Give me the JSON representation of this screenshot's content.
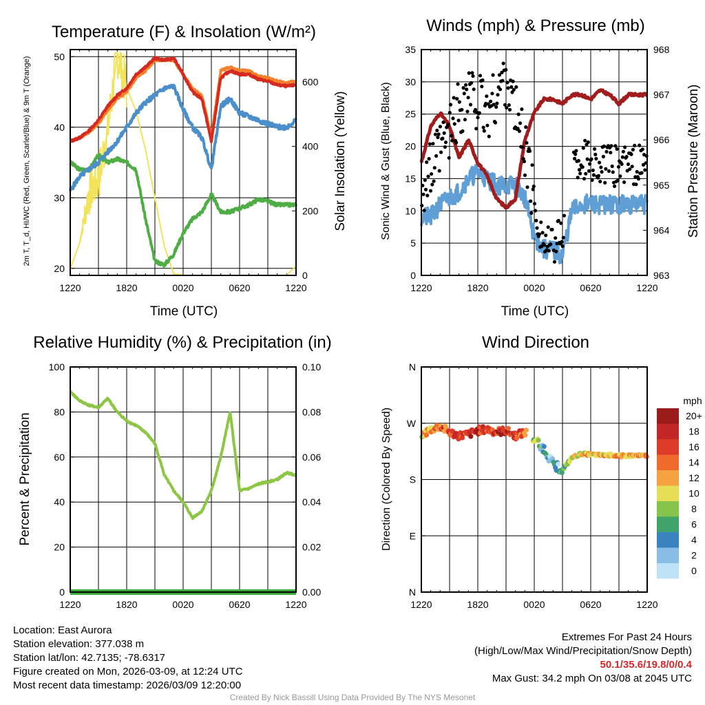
{
  "charts": {
    "temp": {
      "title": "Temperature (F) & Insolation (W/m²)",
      "ylabel": "2m T, T_d, HI/WC (Red, Green, Scarlet/Blue) & 9m T (Orange)",
      "y2label": "Solar Insolation (Yellow)",
      "xlabel": "Time (UTC)",
      "yticks": [
        "20",
        "30",
        "40",
        "50"
      ],
      "y2ticks": [
        "0",
        "200",
        "400",
        "600"
      ],
      "xticks": [
        "1220",
        "1820",
        "0020",
        "0620",
        "1220"
      ]
    },
    "wind": {
      "title": "Winds (mph) & Pressure (mb)",
      "ylabel": "Sonic Wind & Gust (Blue, Black)",
      "y2label": "Station Pressure (Maroon)",
      "xlabel": "Time (UTC)",
      "yticks": [
        "0",
        "5",
        "10",
        "15",
        "20",
        "25",
        "30",
        "35"
      ],
      "y2ticks": [
        "963",
        "964",
        "965",
        "966",
        "967",
        "968"
      ],
      "xticks": [
        "1220",
        "1820",
        "0020",
        "0620",
        "1220"
      ]
    },
    "rh": {
      "title": "Relative Humidity (%) & Precipitation (in)",
      "ylabel": "Percent & Precipitation",
      "yticks": [
        "0",
        "20",
        "40",
        "60",
        "80",
        "100"
      ],
      "y2ticks": [
        "0.00",
        "0.02",
        "0.04",
        "0.06",
        "0.08",
        "0.10"
      ],
      "xticks": [
        "1220",
        "1820",
        "0020",
        "0620",
        "1220"
      ]
    },
    "dir": {
      "title": "Wind Direction",
      "ylabel": "Direction (Colored By Speed)",
      "yticks": [
        "N",
        "E",
        "S",
        "W",
        "N"
      ],
      "xticks": [
        "1220",
        "1820",
        "0020",
        "0620",
        "1220"
      ],
      "legend_title": "mph",
      "legend_labels": [
        "20+",
        "18",
        "16",
        "14",
        "12",
        "10",
        "8",
        "6",
        "4",
        "2",
        "0"
      ]
    }
  },
  "colors": {
    "temp2m": "#d42a20",
    "temp9m": "#f5822a",
    "hiwc": "#4a8fca",
    "dew": "#4fad45",
    "solar": "#f2e35a",
    "wind": "#5f9fd6",
    "gust": "#000000",
    "pressure": "#a11c1c",
    "rh": "#8dc544",
    "precip": "#3aa83a",
    "legend": [
      "#9b1b1b",
      "#c22626",
      "#de3a2a",
      "#ef6a2c",
      "#f7a240",
      "#e6de55",
      "#86c44b",
      "#3fa36b",
      "#3b82c0",
      "#88bde6",
      "#bfe3f6"
    ]
  },
  "chart_data": [
    {
      "type": "line",
      "title": "Temperature (F) & Insolation (W/m²)",
      "xlabel": "Time (UTC)",
      "x_hours": [
        0,
        1,
        2,
        3,
        4,
        5,
        6,
        7,
        8,
        9,
        10,
        11,
        12,
        13,
        14,
        15,
        16,
        17,
        18,
        19,
        20,
        21,
        22,
        23,
        24
      ],
      "ylim": [
        19,
        51
      ],
      "y2lim": [
        0,
        700
      ],
      "series": [
        {
          "name": "2m Temperature",
          "axis": "left",
          "values": [
            38,
            38.5,
            39.5,
            41,
            43,
            44.5,
            45.5,
            47.5,
            48.5,
            49.8,
            49.5,
            49.8,
            47.5,
            45,
            44,
            38,
            47,
            48,
            47.5,
            47.5,
            46.8,
            46.5,
            46,
            45.8,
            46
          ]
        },
        {
          "name": "9m Temperature",
          "axis": "left",
          "values": [
            38,
            38.5,
            39.3,
            40.5,
            42.5,
            44,
            45,
            47,
            48,
            49.5,
            49.5,
            49.5,
            47.5,
            45.5,
            44.5,
            38.5,
            48,
            48.5,
            48,
            48,
            47.2,
            47,
            46.5,
            46.3,
            46.5
          ]
        },
        {
          "name": "Heat Index / Wind Chill",
          "axis": "left",
          "values": [
            31,
            33,
            34,
            35,
            36.5,
            38,
            40,
            42,
            43.5,
            44.5,
            45.5,
            45.8,
            42.5,
            40,
            38.5,
            34,
            43,
            44,
            42,
            41.5,
            41,
            40.5,
            40,
            40,
            41
          ]
        },
        {
          "name": "Dewpoint",
          "axis": "left",
          "values": [
            35,
            34,
            34,
            36,
            35,
            35.5,
            35,
            34,
            27,
            21,
            20.5,
            22,
            25,
            27,
            28,
            30.5,
            28,
            28,
            28.5,
            29,
            29.8,
            29.5,
            29,
            29,
            29
          ]
        },
        {
          "name": "Solar Insolation",
          "axis": "right",
          "values": [
            20,
            100,
            260,
            300,
            450,
            690,
            580,
            510,
            390,
            240,
            90,
            5,
            0,
            0,
            0,
            0,
            0,
            0,
            0,
            0,
            0,
            0,
            0,
            0,
            30
          ]
        }
      ]
    },
    {
      "type": "line+scatter",
      "title": "Winds (mph) & Pressure (mb)",
      "xlabel": "Time (UTC)",
      "x_hours": [
        0,
        1,
        2,
        3,
        4,
        5,
        6,
        7,
        8,
        9,
        10,
        11,
        12,
        13,
        14,
        15,
        16,
        17,
        18,
        19,
        20,
        21,
        22,
        23,
        24
      ],
      "ylim": [
        0,
        35
      ],
      "y2lim": [
        963,
        968
      ],
      "series": [
        {
          "name": "Sonic Wind",
          "axis": "left",
          "values": [
            9,
            9,
            11,
            12,
            13,
            15,
            16,
            15,
            14,
            14,
            14,
            12,
            6,
            4,
            4,
            3,
            10,
            11,
            11,
            11,
            11,
            11,
            11,
            11,
            11
          ]
        },
        {
          "name": "Gust",
          "axis": "left",
          "values": [
            14,
            16,
            19,
            22,
            26,
            28,
            27,
            25,
            28,
            31,
            25,
            20,
            11,
            5,
            4,
            7,
            17,
            18,
            18,
            17,
            17,
            17,
            17,
            17,
            17
          ]
        },
        {
          "name": "Station Pressure",
          "axis": "right",
          "values": [
            965.5,
            966.3,
            966.6,
            966.3,
            965.6,
            966.0,
            965.5,
            965.2,
            964.7,
            964.5,
            964.7,
            966.0,
            966.6,
            966.9,
            966.9,
            966.8,
            967.0,
            967.0,
            966.9,
            967.1,
            967.0,
            966.8,
            967.0,
            967.0,
            967.0
          ]
        }
      ]
    },
    {
      "type": "line",
      "title": "Relative Humidity (%) & Precipitation (in)",
      "x_hours": [
        0,
        1,
        2,
        3,
        4,
        5,
        6,
        7,
        8,
        9,
        10,
        11,
        12,
        13,
        14,
        15,
        16,
        17,
        18,
        19,
        20,
        21,
        22,
        23,
        24
      ],
      "ylim": [
        0,
        100
      ],
      "y2lim": [
        0,
        0.1
      ],
      "series": [
        {
          "name": "Relative Humidity",
          "axis": "left",
          "values": [
            89,
            85,
            83,
            82,
            86,
            80,
            76,
            74,
            71,
            66,
            52,
            45,
            40,
            33,
            36,
            45,
            60,
            80,
            45,
            46,
            48,
            49,
            50,
            53,
            52
          ]
        },
        {
          "name": "Precipitation",
          "axis": "right",
          "values": [
            0,
            0,
            0,
            0,
            0,
            0,
            0,
            0,
            0,
            0,
            0,
            0,
            0,
            0,
            0,
            0,
            0,
            0,
            0,
            0,
            0,
            0,
            0,
            0,
            0
          ]
        }
      ]
    },
    {
      "type": "scatter",
      "title": "Wind Direction",
      "ylabel": "Direction (Colored By Speed)",
      "x_hours": [
        0,
        1,
        2,
        3,
        4,
        5,
        6,
        7,
        8,
        9,
        10,
        11,
        12,
        13,
        14,
        15,
        16,
        17,
        18,
        19,
        20,
        21,
        22,
        23,
        24
      ],
      "ylim": [
        0,
        360
      ],
      "series": [
        {
          "name": "Direction (deg)",
          "values": [
            250,
            260,
            265,
            255,
            250,
            252,
            258,
            260,
            256,
            258,
            250,
            255,
            245,
            230,
            205,
            195,
            215,
            221,
            220,
            219,
            219,
            218,
            218,
            218,
            218
          ]
        },
        {
          "name": "Speed (mph)",
          "values": [
            11,
            12,
            15,
            15,
            16,
            17,
            18,
            16,
            17,
            17,
            16,
            13,
            8,
            4,
            3,
            4,
            10,
            11,
            11,
            11,
            12,
            12,
            12,
            12,
            12
          ]
        }
      ]
    }
  ],
  "info": {
    "location": "Location: East Aurora",
    "elevation": "Station elevation: 377.038 m",
    "latlon": "Station lat/lon: 42.7135; -78.6317",
    "created": "Figure created on Mon, 2026-03-09, at 12:24 UTC",
    "recent": "Most recent data timestamp: 2026/03/09 12:20:00",
    "extremes_title": "Extremes For Past 24 Hours",
    "extremes_sub": "(High/Low/Max Wind/Precipitation/Snow Depth)",
    "extremes_values": "50.1/35.6/19.8/0/0.4",
    "max_gust": "Max Gust: 34.2 mph On 03/08 at 2045 UTC",
    "credit": "Created By Nick Bassill Using Data Provided By The NYS Mesonet"
  }
}
